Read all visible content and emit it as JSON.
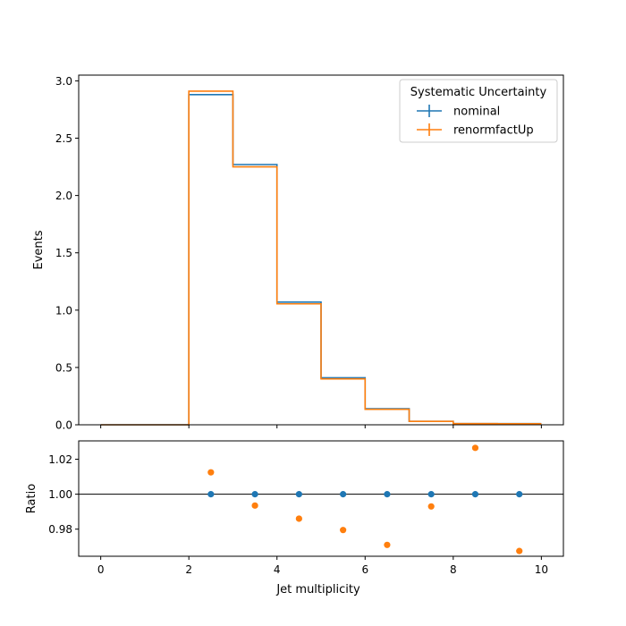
{
  "colors": {
    "nominal": "#1f77b4",
    "renormfactUp": "#ff7f0e",
    "axis": "#000000",
    "reference_line": "#000000"
  },
  "chart_data": [
    {
      "type": "line",
      "subtype": "step-histogram",
      "title": "",
      "xlabel": "",
      "ylabel": "Events",
      "xlim": [
        -0.5,
        10.5
      ],
      "ylim": [
        0,
        3.05
      ],
      "x_ticks": [
        0,
        2,
        4,
        6,
        8,
        10
      ],
      "x_ticklabels_visible": false,
      "y_ticks": [
        0.0,
        0.5,
        1.0,
        1.5,
        2.0,
        2.5,
        3.0
      ],
      "y_ticklabels": [
        "0.0",
        "0.5",
        "1.0",
        "1.5",
        "2.0",
        "2.5",
        "3.0"
      ],
      "grid": false,
      "legend": {
        "title": "Systematic Uncertainty",
        "placement": "top-right",
        "entries": [
          "nominal",
          "renormfactUp"
        ]
      },
      "bin_edges": [
        0,
        1,
        2,
        3,
        4,
        5,
        6,
        7,
        8,
        9,
        10
      ],
      "series": [
        {
          "name": "nominal",
          "color": "#1f77b4",
          "values": [
            0,
            0,
            2.88,
            2.27,
            1.07,
            0.41,
            0.14,
            0.03,
            0.01,
            0.01
          ]
        },
        {
          "name": "renormfactUp",
          "color": "#ff7f0e",
          "values": [
            0,
            0,
            2.91,
            2.25,
            1.055,
            0.4,
            0.135,
            0.03,
            0.01,
            0.009
          ]
        }
      ]
    },
    {
      "type": "scatter",
      "title": "",
      "xlabel": "Jet multiplicity",
      "ylabel": "Ratio",
      "xlim": [
        -0.5,
        10.5
      ],
      "ylim": [
        0.9645,
        1.0305
      ],
      "x_ticks": [
        0,
        2,
        4,
        6,
        8,
        10
      ],
      "x_ticklabels": [
        "0",
        "2",
        "4",
        "6",
        "8",
        "10"
      ],
      "y_ticks": [
        0.98,
        1.0,
        1.02
      ],
      "y_ticklabels": [
        "0.98",
        "1.00",
        "1.02"
      ],
      "grid": false,
      "reference_line_y": 1.0,
      "x": [
        2.5,
        3.5,
        4.5,
        5.5,
        6.5,
        7.5,
        8.5,
        9.5
      ],
      "series": [
        {
          "name": "nominal",
          "color": "#1f77b4",
          "values": [
            1.0,
            1.0,
            1.0,
            1.0,
            1.0,
            1.0,
            1.0,
            1.0
          ]
        },
        {
          "name": "renormfactUp",
          "color": "#ff7f0e",
          "values": [
            1.0125,
            0.9935,
            0.986,
            0.9795,
            0.971,
            0.993,
            1.0265,
            0.9675
          ]
        }
      ]
    }
  ]
}
